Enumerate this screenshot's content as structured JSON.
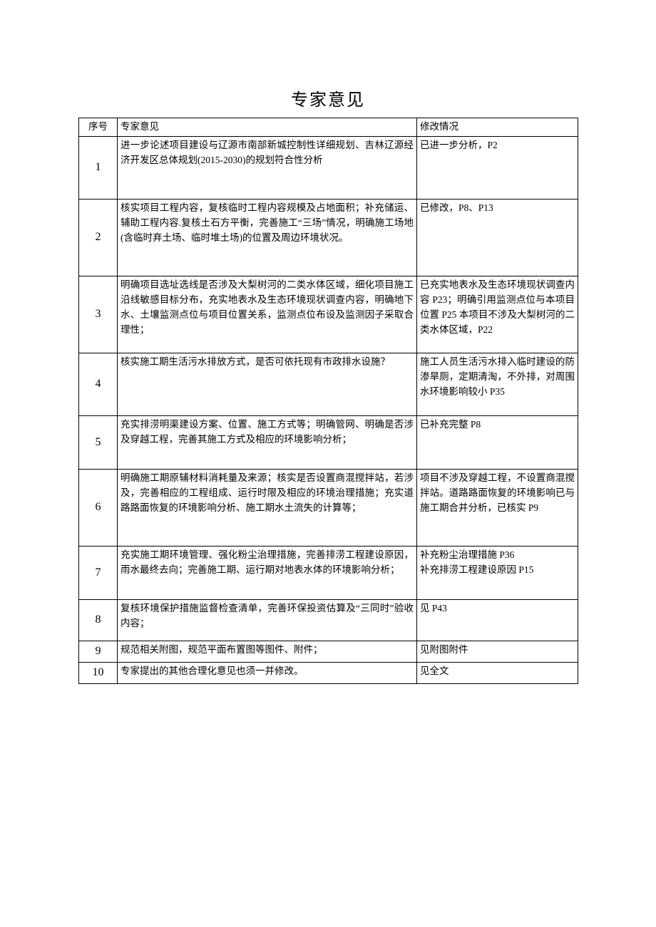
{
  "title": "专家意见",
  "columns": [
    "序号",
    "专家意见",
    "修改情况"
  ],
  "rows": [
    {
      "num": "1",
      "opinion": "进一步论述项目建设与辽源市南部新城控制性详细规划、吉林辽源经济开发区总体规划(2015-2030)的规划符合性分析",
      "mod": "已进一步分析，P2"
    },
    {
      "num": "2",
      "opinion": "核实项目工程内容，复核临时工程内容规模及占地面积；补充储运、辅助工程内容.复核土石方平衡，完善施工“三场”情况，明确施工场地(含临时弃土场、临时堆土场)的位置及周边环境状况。",
      "mod": "已修改，P8、P13"
    },
    {
      "num": "3",
      "opinion": "明确项目选址选线是否涉及大梨树河的二类水体区域，细化项目施工沿线敏感目标分布，充实地表水及生态环境现状调查内容，明确地下水、土壤监测点位与项目位置关系，监测点位布设及监测因子采取合理性；",
      "mod": "已充实地表水及生态环境现状调查内容 P23；明确引用监测点位与本项目位置 P25 本项目不涉及大梨树河的二类水体区域，P22"
    },
    {
      "num": "4",
      "opinion": "核实施工期生活污水排放方式，是否可依托现有市政排水设施？",
      "mod": "施工人员生活污水排入临时建设的防渗旱厕，定期清淘，不外排，对周围水环境影响较小 P35"
    },
    {
      "num": "5",
      "opinion": "充实排涝明渠建设方案、位置、施工方式等；明确管网、明确是否涉及穿越工程，完善其施工方式及相应的环境影响分析；",
      "mod": "已补充完整 P8"
    },
    {
      "num": "6",
      "opinion": "明确施工期原辅材料消耗量及来源；核实是否设置商混搅拌站，若涉及，完善相应的工程组成、运行时限及相应的环境治理措施；充实道路路面恢复的环境影响分析、施工期水土流失的计算等；",
      "mod": "项目不涉及穿越工程，不设置商混搅拌站。道路路面恢复的环境影响已与施工期合并分析，已核实 P9"
    },
    {
      "num": "7",
      "opinion": "充实施工期环境管理、强化粉尘治理措施，完善排涝工程建设原因，雨水最终去向；完善施工期、运行期对地表水体的环境影响分析；",
      "mod": "补充粉尘治理措施 P36\n补充排涝工程建设原因 P15"
    },
    {
      "num": "8",
      "opinion": "复核环境保护措施监督检查清单，完善环保投资估算及“三同时”验收内容；",
      "mod": "见 P43"
    },
    {
      "num": "9",
      "opinion": "规范相关附图，规范平面布置图等图件、附件；",
      "mod": "见附图附件"
    },
    {
      "num": "10",
      "opinion": "专家提出的其他合理化意见也须一并修改。",
      "mod": "见全文"
    }
  ]
}
